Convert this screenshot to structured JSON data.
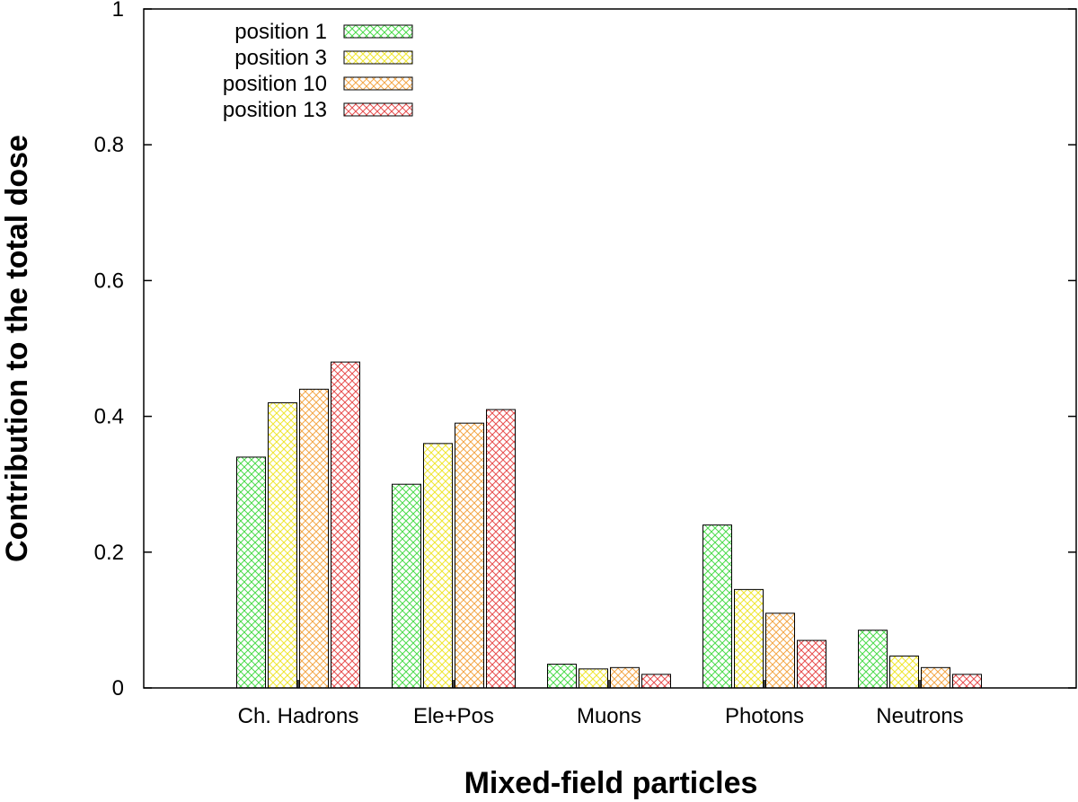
{
  "chart_data": {
    "type": "bar",
    "xlabel": "Mixed-field particles",
    "ylabel": "Contribution to the total dose",
    "ylim": [
      0,
      1
    ],
    "yticks": [
      "0",
      "0.2",
      "0.4",
      "0.6",
      "0.8",
      "1"
    ],
    "grid": false,
    "legend_position": "top-left",
    "pattern": "crosshatch",
    "categories": [
      "Ch. Hadrons",
      "Ele+Pos",
      "Muons",
      "Photons",
      "Neutrons"
    ],
    "series": [
      {
        "name": "position 1",
        "color": "#4cdc4c",
        "values": [
          0.34,
          0.3,
          0.035,
          0.24,
          0.085
        ]
      },
      {
        "name": "position 3",
        "color": "#f0e632",
        "values": [
          0.42,
          0.36,
          0.028,
          0.145,
          0.047
        ]
      },
      {
        "name": "position 10",
        "color": "#f4a84a",
        "values": [
          0.44,
          0.39,
          0.03,
          0.11,
          0.03
        ]
      },
      {
        "name": "position 13",
        "color": "#e85050",
        "values": [
          0.48,
          0.41,
          0.02,
          0.07,
          0.02
        ]
      }
    ]
  }
}
